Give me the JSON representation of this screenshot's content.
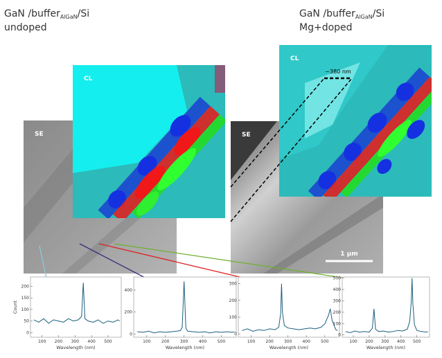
{
  "figure": {
    "panels": [
      {
        "title_prefix": "GaN /buffer",
        "title_sub": "AlGaN",
        "title_suffix": "/Si",
        "subtitle": "undoped",
        "se_label": "SE",
        "cl_label": "CL"
      },
      {
        "title_prefix": "GaN /buffer",
        "title_sub": "AlGaN",
        "title_suffix": "/Si",
        "subtitle": "Mg+doped",
        "se_label": "SE",
        "cl_label": "CL",
        "annotation": "~380 nm",
        "scale_bar": "1 µm"
      }
    ]
  },
  "chart_data": [
    {
      "type": "line",
      "x_label": "Wavelength (nm)",
      "y_label": "Count",
      "color": "#1b5e7e",
      "x": [
        50,
        80,
        110,
        140,
        170,
        200,
        230,
        260,
        290,
        320,
        340,
        350,
        360,
        380,
        410,
        440,
        470,
        500,
        530,
        560,
        570
      ],
      "values": [
        55,
        45,
        60,
        40,
        55,
        50,
        45,
        60,
        50,
        55,
        70,
        215,
        60,
        50,
        45,
        55,
        40,
        50,
        45,
        55,
        50
      ],
      "xlim": [
        30,
        580
      ],
      "ylim": [
        -20,
        240
      ],
      "xticks": [
        100,
        200,
        300,
        400,
        500
      ],
      "yticks": [
        0,
        50,
        100,
        150,
        200
      ]
    },
    {
      "type": "line",
      "x_label": "Wavelength (nm)",
      "color": "#1b5e7e",
      "x": [
        50,
        80,
        110,
        140,
        170,
        200,
        230,
        260,
        280,
        290,
        300,
        310,
        320,
        350,
        380,
        410,
        440,
        470,
        500,
        530,
        560,
        570
      ],
      "values": [
        20,
        15,
        25,
        10,
        20,
        15,
        20,
        25,
        30,
        60,
        480,
        50,
        25,
        20,
        15,
        20,
        10,
        20,
        15,
        20,
        15,
        20
      ],
      "xlim": [
        30,
        580
      ],
      "ylim": [
        -30,
        520
      ],
      "xticks": [
        100,
        200,
        300,
        400,
        500
      ],
      "yticks": [
        0,
        200,
        400
      ]
    },
    {
      "type": "line",
      "x_label": "Wavelength (nm)",
      "color": "#1b5e7e",
      "x": [
        50,
        80,
        110,
        140,
        170,
        200,
        230,
        250,
        260,
        265,
        270,
        280,
        300,
        330,
        360,
        390,
        420,
        450,
        480,
        500,
        520,
        530,
        540,
        560,
        570
      ],
      "values": [
        20,
        30,
        15,
        25,
        20,
        30,
        25,
        40,
        120,
        300,
        130,
        50,
        35,
        30,
        25,
        30,
        35,
        30,
        40,
        60,
        110,
        150,
        80,
        25,
        20
      ],
      "xlim": [
        30,
        580
      ],
      "ylim": [
        -20,
        340
      ],
      "xticks": [
        100,
        200,
        300,
        400,
        500
      ],
      "yticks": [
        0,
        100,
        200,
        300
      ]
    },
    {
      "type": "line",
      "x_label": "Wavelength (nm)",
      "color": "#1b5e7e",
      "x": [
        50,
        80,
        110,
        140,
        170,
        200,
        220,
        230,
        240,
        260,
        290,
        320,
        350,
        380,
        410,
        440,
        455,
        465,
        470,
        475,
        485,
        500,
        530,
        560,
        570
      ],
      "values": [
        30,
        20,
        35,
        25,
        30,
        25,
        60,
        230,
        50,
        30,
        35,
        25,
        30,
        40,
        35,
        50,
        120,
        300,
        500,
        280,
        90,
        40,
        30,
        25,
        30
      ],
      "xlim": [
        30,
        580
      ],
      "ylim": [
        -20,
        510
      ],
      "xticks": [
        100,
        200,
        300,
        400,
        500
      ],
      "yticks": [
        0,
        100,
        200,
        300,
        400,
        500
      ]
    }
  ]
}
